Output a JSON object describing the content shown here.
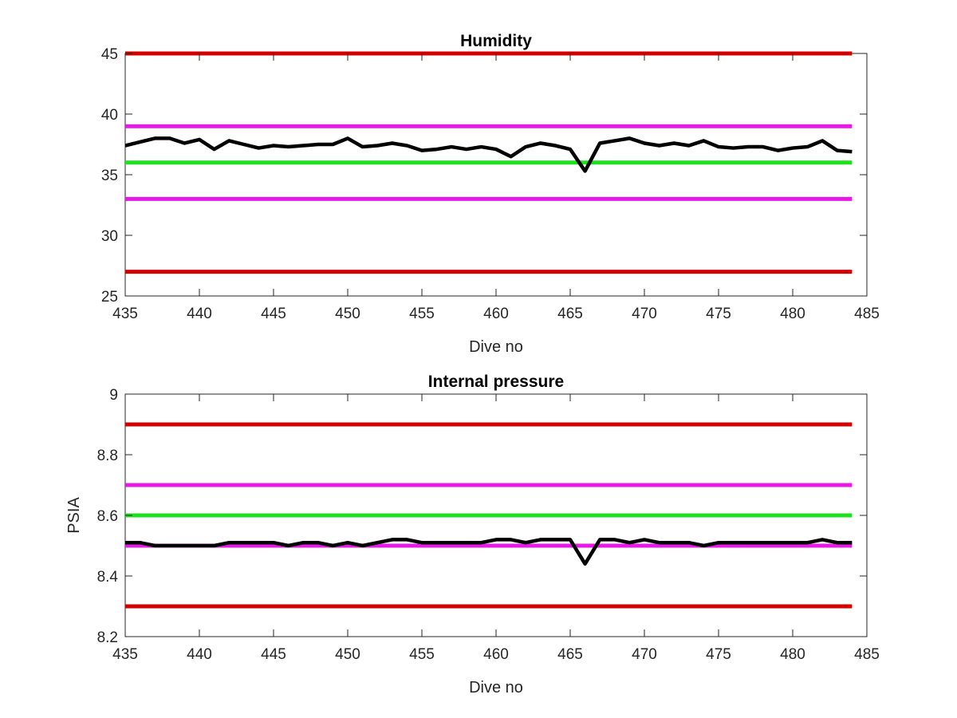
{
  "chart_data": [
    {
      "type": "line",
      "title": "Humidity",
      "xlabel": "Dive no",
      "ylabel": "",
      "xlim": [
        435,
        485
      ],
      "ylim": [
        25,
        45
      ],
      "xticks": [
        435,
        440,
        445,
        450,
        455,
        460,
        465,
        470,
        475,
        480,
        485
      ],
      "yticks": [
        25,
        30,
        35,
        40,
        45
      ],
      "grid": false,
      "reference_lines": [
        {
          "y": 45,
          "color": "#d40000",
          "x_range": [
            435,
            484
          ]
        },
        {
          "y": 39,
          "color": "#e619e6",
          "x_range": [
            435,
            484
          ]
        },
        {
          "y": 36,
          "color": "#1fe01f",
          "x_range": [
            435,
            484
          ]
        },
        {
          "y": 33,
          "color": "#e619e6",
          "x_range": [
            435,
            484
          ]
        },
        {
          "y": 27,
          "color": "#d40000",
          "x_range": [
            435,
            484
          ]
        }
      ],
      "series": [
        {
          "color": "#000000",
          "x": [
            435,
            436,
            437,
            438,
            439,
            440,
            441,
            442,
            443,
            444,
            445,
            446,
            447,
            448,
            449,
            450,
            451,
            452,
            453,
            454,
            455,
            456,
            457,
            458,
            459,
            460,
            461,
            462,
            463,
            464,
            465,
            466,
            467,
            468,
            469,
            470,
            471,
            472,
            473,
            474,
            475,
            476,
            477,
            478,
            479,
            480,
            481,
            482,
            483,
            484
          ],
          "y": [
            37.4,
            37.7,
            38.0,
            38.0,
            37.6,
            37.9,
            37.1,
            37.8,
            37.5,
            37.2,
            37.4,
            37.3,
            37.4,
            37.5,
            37.5,
            38.0,
            37.3,
            37.4,
            37.6,
            37.4,
            37.0,
            37.1,
            37.3,
            37.1,
            37.3,
            37.1,
            36.5,
            37.3,
            37.6,
            37.4,
            37.1,
            35.3,
            37.6,
            37.8,
            38.0,
            37.6,
            37.4,
            37.6,
            37.4,
            37.8,
            37.3,
            37.2,
            37.3,
            37.3,
            37.0,
            37.2,
            37.3,
            37.8,
            37.0,
            36.9
          ]
        }
      ]
    },
    {
      "type": "line",
      "title": "Internal pressure",
      "xlabel": "Dive no",
      "ylabel": "PSIA",
      "xlim": [
        435,
        485
      ],
      "ylim": [
        8.2,
        9.0
      ],
      "xticks": [
        435,
        440,
        445,
        450,
        455,
        460,
        465,
        470,
        475,
        480,
        485
      ],
      "yticks": [
        8.2,
        8.4,
        8.6,
        8.8,
        9
      ],
      "grid": false,
      "reference_lines": [
        {
          "y": 8.9,
          "color": "#d40000",
          "x_range": [
            435,
            484
          ]
        },
        {
          "y": 8.7,
          "color": "#e619e6",
          "x_range": [
            435,
            484
          ]
        },
        {
          "y": 8.6,
          "color": "#1fe01f",
          "x_range": [
            435,
            484
          ]
        },
        {
          "y": 8.5,
          "color": "#e619e6",
          "x_range": [
            435,
            484
          ]
        },
        {
          "y": 8.3,
          "color": "#d40000",
          "x_range": [
            435,
            484
          ]
        }
      ],
      "series": [
        {
          "color": "#000000",
          "x": [
            435,
            436,
            437,
            438,
            439,
            440,
            441,
            442,
            443,
            444,
            445,
            446,
            447,
            448,
            449,
            450,
            451,
            452,
            453,
            454,
            455,
            456,
            457,
            458,
            459,
            460,
            461,
            462,
            463,
            464,
            465,
            466,
            467,
            468,
            469,
            470,
            471,
            472,
            473,
            474,
            475,
            476,
            477,
            478,
            479,
            480,
            481,
            482,
            483,
            484
          ],
          "y": [
            8.51,
            8.51,
            8.5,
            8.5,
            8.5,
            8.5,
            8.5,
            8.51,
            8.51,
            8.51,
            8.51,
            8.5,
            8.51,
            8.51,
            8.5,
            8.51,
            8.5,
            8.51,
            8.52,
            8.52,
            8.51,
            8.51,
            8.51,
            8.51,
            8.51,
            8.52,
            8.52,
            8.51,
            8.52,
            8.52,
            8.52,
            8.44,
            8.52,
            8.52,
            8.51,
            8.52,
            8.51,
            8.51,
            8.51,
            8.5,
            8.51,
            8.51,
            8.51,
            8.51,
            8.51,
            8.51,
            8.51,
            8.52,
            8.51,
            8.51
          ]
        }
      ]
    }
  ]
}
